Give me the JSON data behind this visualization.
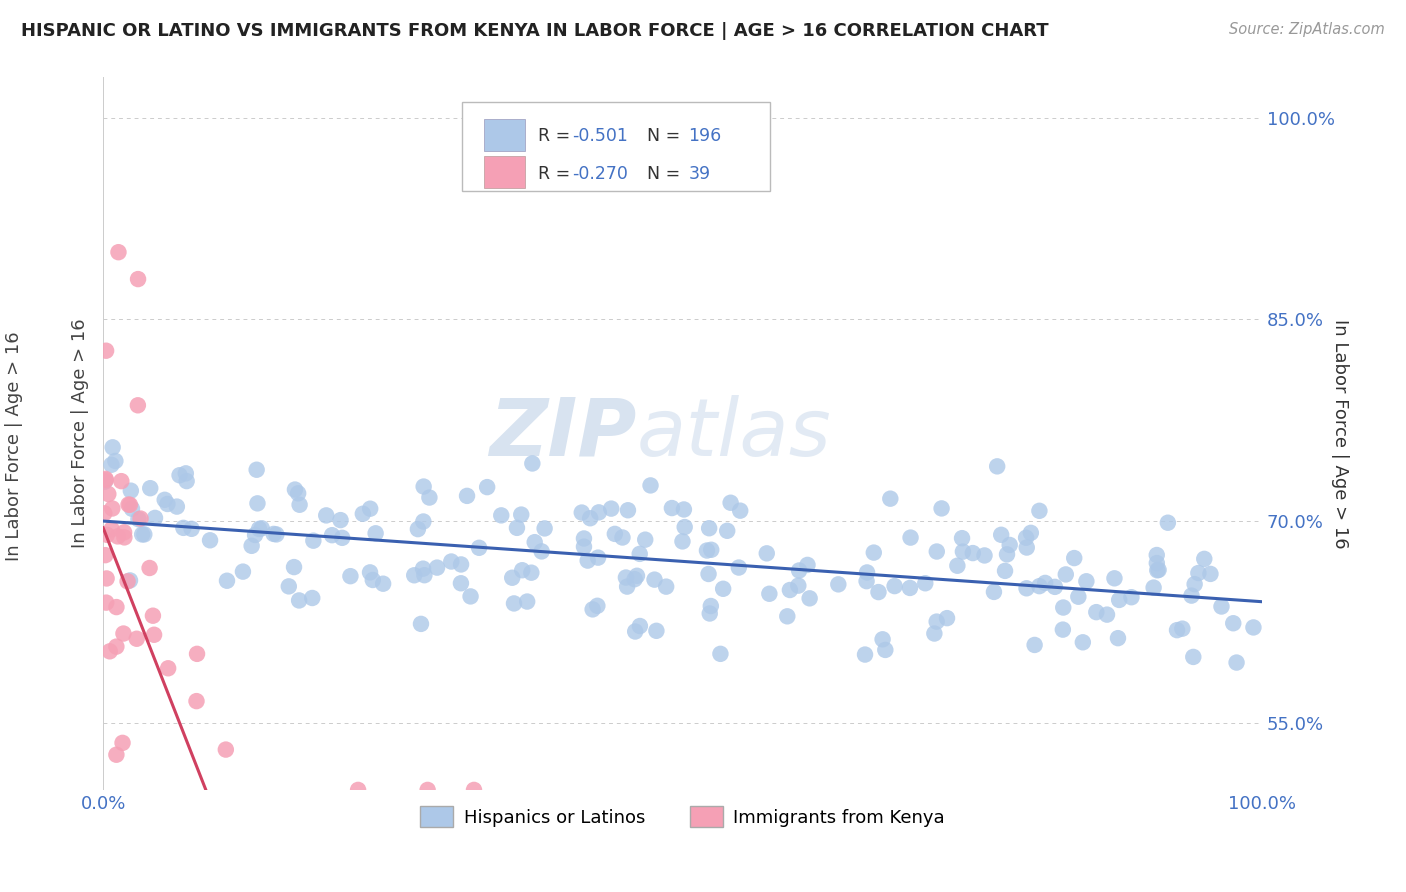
{
  "title": "HISPANIC OR LATINO VS IMMIGRANTS FROM KENYA IN LABOR FORCE | AGE > 16 CORRELATION CHART",
  "source": "Source: ZipAtlas.com",
  "ylabel": "In Labor Force | Age > 16",
  "watermark_zip": "ZIP",
  "watermark_atlas": "atlas",
  "blue_R": -0.501,
  "blue_N": 196,
  "pink_R": -0.27,
  "pink_N": 39,
  "blue_color": "#adc8e8",
  "pink_color": "#f5a0b5",
  "blue_line_color": "#3a60b0",
  "pink_line_color": "#d04060",
  "legend_blue_label": "Hispanics or Latinos",
  "legend_pink_label": "Immigrants from Kenya",
  "xmin": 0.0,
  "xmax": 1.0,
  "ymin": 0.5,
  "ymax": 1.03,
  "yticks": [
    0.55,
    0.7,
    0.85,
    1.0
  ],
  "ytick_labels": [
    "55.0%",
    "70.0%",
    "85.0%",
    "100.0%"
  ],
  "xtick_labels": [
    "0.0%",
    "100.0%"
  ],
  "background_color": "#ffffff",
  "grid_color": "#cccccc",
  "label_color": "#4472c4",
  "title_color": "#222222",
  "source_color": "#999999"
}
